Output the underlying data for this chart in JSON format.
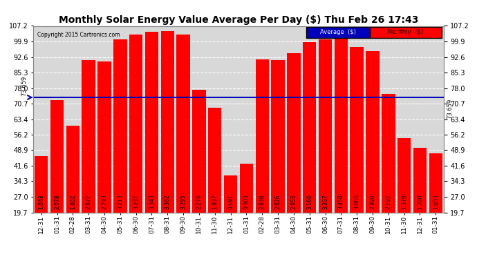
{
  "title": "Monthly Solar Energy Value Average Per Day ($) Thu Feb 26 17:43",
  "copyright": "Copyright 2015 Cartronics.com",
  "average_value": 73.659,
  "bar_color": "#FF0000",
  "average_line_color": "#0000BB",
  "background_color": "#FFFFFF",
  "plot_bg_color": "#D8D8D8",
  "categories": [
    "12-31",
    "01-31",
    "02-28",
    "03-31",
    "04-30",
    "05-31",
    "06-30",
    "07-31",
    "08-31",
    "09-30",
    "10-31",
    "11-30",
    "12-31",
    "01-31",
    "02-28",
    "03-31",
    "04-30",
    "05-31",
    "06-30",
    "07-31",
    "08-31",
    "09-30",
    "10-31",
    "11-30",
    "12-31",
    "01-31"
  ],
  "values": [
    1.048,
    2.078,
    1.602,
    2.822,
    2.793,
    3.213,
    3.297,
    3.343,
    3.362,
    3.295,
    2.274,
    1.937,
    0.691,
    0.903,
    2.838,
    2.826,
    2.955,
    3.16,
    3.207,
    3.458,
    3.065,
    2.99,
    2.192,
    1.379,
    1.2,
    1.093
  ],
  "yticks": [
    19.7,
    27.0,
    34.3,
    41.6,
    48.9,
    56.2,
    63.4,
    70.7,
    78.0,
    85.3,
    92.6,
    99.9,
    107.2
  ],
  "ymin": 19.7,
  "ymax": 107.2,
  "grid_color": "#FFFFFF",
  "legend_avg_color": "#0000BB",
  "legend_monthly_color": "#FF0000",
  "title_fontsize": 10,
  "tick_fontsize": 7,
  "bar_label_fontsize": 5.5
}
